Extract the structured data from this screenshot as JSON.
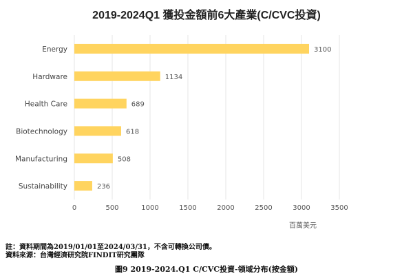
{
  "chart_data": {
    "type": "bar",
    "orientation": "horizontal",
    "title": "2019-2024Q1 獲投金額前6大產業(C/CVC投資)",
    "categories": [
      "Energy",
      "Hardware",
      "Health Care",
      "Biotechnology",
      "Manufacturing",
      "Sustainability"
    ],
    "values": [
      3100,
      1134,
      689,
      618,
      508,
      236
    ],
    "xlim": [
      0,
      3500
    ],
    "xticks": [
      0,
      500,
      1000,
      1500,
      2000,
      2500,
      3000,
      3500
    ],
    "unit_label": "百萬美元",
    "bar_color": "#FFD45F",
    "grid": true,
    "legend": "none"
  },
  "notes": {
    "line1": "註：資料期間為2019/01/01至2024/03/31，不含可轉換公司債。",
    "line2": "資料來源：台灣經濟研究院FINDIT研究團隊"
  },
  "caption": "圖9  2019-2024.Q1 C/CVC投資-領域分布(按金額)"
}
